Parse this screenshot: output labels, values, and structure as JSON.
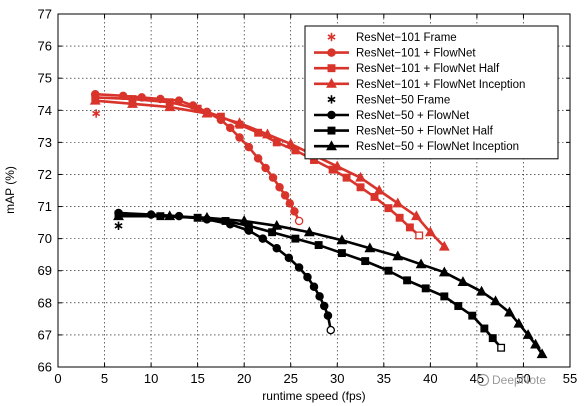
{
  "watermark": {
    "text": "DeepNote"
  },
  "chart_data": {
    "type": "line",
    "xlabel": "runtime speed (fps)",
    "ylabel": "mAP (%)",
    "xlim": [
      0,
      55
    ],
    "ylim": [
      66,
      77
    ],
    "xticks": [
      0,
      5,
      10,
      15,
      20,
      25,
      30,
      35,
      40,
      45,
      50,
      55
    ],
    "yticks": [
      66,
      67,
      68,
      69,
      70,
      71,
      72,
      73,
      74,
      75,
      76,
      77
    ],
    "grid": true,
    "legend_position": "top-right",
    "series": [
      {
        "name": "ResNet−101 Frame",
        "color": "#d9342b",
        "marker": "asterisk",
        "line": false,
        "points": [
          [
            4.1,
            73.9
          ]
        ]
      },
      {
        "name": "ResNet−101 + FlowNet",
        "color": "#d9342b",
        "marker": "circle",
        "line": true,
        "points": [
          [
            4.0,
            74.5
          ],
          [
            7.0,
            74.45
          ],
          [
            9.0,
            74.4
          ],
          [
            11.0,
            74.35
          ],
          [
            13.0,
            74.3
          ],
          [
            14.5,
            74.15
          ],
          [
            16.0,
            73.95
          ],
          [
            17.5,
            73.7
          ],
          [
            18.5,
            73.45
          ],
          [
            19.5,
            73.15
          ],
          [
            20.5,
            72.85
          ],
          [
            21.5,
            72.5
          ],
          [
            22.3,
            72.2
          ],
          [
            23.1,
            71.9
          ],
          [
            23.8,
            71.6
          ],
          [
            24.4,
            71.35
          ],
          [
            24.9,
            71.1
          ],
          [
            25.4,
            70.85
          ],
          [
            25.9,
            70.55
          ]
        ]
      },
      {
        "name": "ResNet−101 + FlowNet Half",
        "color": "#d9342b",
        "marker": "square",
        "line": true,
        "points": [
          [
            4.0,
            74.4
          ],
          [
            8.0,
            74.35
          ],
          [
            12.0,
            74.25
          ],
          [
            15.0,
            74.05
          ],
          [
            17.5,
            73.8
          ],
          [
            19.5,
            73.55
          ],
          [
            21.5,
            73.3
          ],
          [
            23.5,
            73.0
          ],
          [
            25.5,
            72.75
          ],
          [
            27.5,
            72.45
          ],
          [
            29.5,
            72.15
          ],
          [
            31.0,
            71.9
          ],
          [
            32.5,
            71.6
          ],
          [
            34.0,
            71.3
          ],
          [
            35.5,
            70.95
          ],
          [
            36.7,
            70.65
          ],
          [
            37.8,
            70.35
          ],
          [
            38.8,
            70.1
          ]
        ]
      },
      {
        "name": "ResNet−101 + FlowNet Inception",
        "color": "#d9342b",
        "marker": "triangle",
        "line": true,
        "points": [
          [
            4.0,
            74.3
          ],
          [
            8.0,
            74.2
          ],
          [
            12.0,
            74.1
          ],
          [
            16.0,
            73.9
          ],
          [
            19.5,
            73.6
          ],
          [
            22.5,
            73.25
          ],
          [
            25.0,
            72.95
          ],
          [
            27.5,
            72.6
          ],
          [
            30.0,
            72.25
          ],
          [
            32.5,
            71.9
          ],
          [
            34.5,
            71.5
          ],
          [
            36.5,
            71.1
          ],
          [
            38.5,
            70.7
          ],
          [
            40.0,
            70.2
          ],
          [
            41.5,
            69.75
          ]
        ]
      },
      {
        "name": "ResNet−50 Frame",
        "color": "#000000",
        "marker": "asterisk",
        "line": false,
        "points": [
          [
            6.5,
            70.4
          ]
        ]
      },
      {
        "name": "ResNet−50 + FlowNet",
        "color": "#000000",
        "marker": "circle",
        "line": true,
        "points": [
          [
            6.5,
            70.8
          ],
          [
            10.0,
            70.75
          ],
          [
            13.0,
            70.7
          ],
          [
            16.0,
            70.6
          ],
          [
            18.5,
            70.45
          ],
          [
            20.5,
            70.25
          ],
          [
            22.0,
            70.0
          ],
          [
            23.5,
            69.7
          ],
          [
            24.8,
            69.4
          ],
          [
            25.9,
            69.1
          ],
          [
            26.8,
            68.8
          ],
          [
            27.5,
            68.5
          ],
          [
            28.1,
            68.2
          ],
          [
            28.6,
            67.9
          ],
          [
            29.0,
            67.6
          ],
          [
            29.3,
            67.15
          ]
        ]
      },
      {
        "name": "ResNet−50 + FlowNet Half",
        "color": "#000000",
        "marker": "square",
        "line": true,
        "points": [
          [
            6.5,
            70.75
          ],
          [
            11.0,
            70.7
          ],
          [
            15.0,
            70.65
          ],
          [
            18.0,
            70.55
          ],
          [
            20.5,
            70.4
          ],
          [
            23.0,
            70.2
          ],
          [
            25.5,
            70.0
          ],
          [
            28.0,
            69.8
          ],
          [
            30.5,
            69.55
          ],
          [
            33.0,
            69.3
          ],
          [
            35.5,
            69.0
          ],
          [
            37.5,
            68.7
          ],
          [
            39.5,
            68.45
          ],
          [
            41.5,
            68.2
          ],
          [
            43.0,
            67.9
          ],
          [
            44.5,
            67.6
          ],
          [
            45.8,
            67.2
          ],
          [
            46.7,
            66.9
          ],
          [
            47.6,
            66.6
          ]
        ]
      },
      {
        "name": "ResNet−50 + FlowNet Inception",
        "color": "#000000",
        "marker": "triangle",
        "line": true,
        "points": [
          [
            6.5,
            70.7
          ],
          [
            12.0,
            70.7
          ],
          [
            16.0,
            70.65
          ],
          [
            20.0,
            70.55
          ],
          [
            23.5,
            70.4
          ],
          [
            27.0,
            70.2
          ],
          [
            30.5,
            69.95
          ],
          [
            33.5,
            69.7
          ],
          [
            36.5,
            69.45
          ],
          [
            39.0,
            69.2
          ],
          [
            41.5,
            68.95
          ],
          [
            43.5,
            68.65
          ],
          [
            45.5,
            68.35
          ],
          [
            47.0,
            68.05
          ],
          [
            48.5,
            67.7
          ],
          [
            49.5,
            67.35
          ],
          [
            50.5,
            67.0
          ],
          [
            51.3,
            66.7
          ],
          [
            52.0,
            66.4
          ]
        ]
      }
    ]
  }
}
